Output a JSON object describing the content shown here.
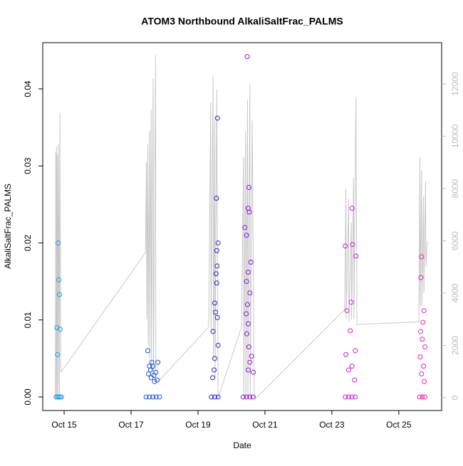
{
  "chart_data": {
    "type": "scatter",
    "title": "ATOM3 Northbound AlkaliSaltFrac_PALMS",
    "x_label": "Date",
    "y_label": "AlkaliSaltFrac_PALMS",
    "xlim": [
      14.36,
      26.28
    ],
    "xticks": [
      {
        "value": 15,
        "label": "Oct 15"
      },
      {
        "value": 17,
        "label": "Oct 17"
      },
      {
        "value": 19,
        "label": "Oct 19"
      },
      {
        "value": 21,
        "label": "Oct 21"
      },
      {
        "value": 23,
        "label": "Oct 23"
      },
      {
        "value": 25,
        "label": "Oct 25"
      }
    ],
    "ylim": [
      -0.00176,
      0.046
    ],
    "yticks": [
      {
        "value": 0,
        "label": "0.00"
      },
      0.01,
      0.02,
      0.03,
      0.04
    ],
    "y2lim": [
      -490,
      13580
    ],
    "y2ticks": [
      0,
      2000,
      4000,
      6000,
      8000,
      10000,
      12000
    ],
    "y2tick_color": "#bbbbbb",
    "series": [
      {
        "color": "#1f9fe8",
        "x": [
          14.78,
          14.8,
          14.82,
          14.84,
          14.86,
          14.88,
          14.76,
          14.8,
          14.84,
          14.88,
          14.92
        ],
        "values": [
          0.009,
          0.0055,
          0.02,
          0.0152,
          0.0133,
          0.0088,
          0,
          0,
          0,
          0,
          0
        ]
      },
      {
        "color": "#1a4fe0",
        "x": [
          17.5,
          17.52,
          17.55,
          17.58,
          17.6,
          17.62,
          17.65,
          17.68,
          17.7,
          17.74,
          17.78,
          17.8,
          17.45,
          17.55,
          17.65,
          17.75,
          17.85
        ],
        "values": [
          0.006,
          0.003,
          0.004,
          0.0035,
          0.0025,
          0.0045,
          0.004,
          0.0028,
          0.002,
          0.0032,
          0.0022,
          0.0045,
          0,
          0,
          0,
          0,
          0
        ]
      },
      {
        "color": "#2a1fd8",
        "x": [
          19.58,
          19.55,
          19.6,
          19.56,
          19.57,
          19.54,
          19.56,
          19.5,
          19.52,
          19.58,
          19.45,
          19.6,
          19.5,
          19.48,
          19.44,
          19.4,
          19.5,
          19.6
        ],
        "values": [
          0.0362,
          0.0258,
          0.02,
          0.019,
          0.017,
          0.016,
          0.0148,
          0.0122,
          0.011,
          0.0103,
          0.0085,
          0.0067,
          0.005,
          0.0035,
          0.0025,
          0,
          0,
          0
        ]
      },
      {
        "color": "#8a10e8",
        "x": [
          20.47,
          20.52,
          20.5,
          20.53,
          20.4,
          20.45,
          20.58,
          20.5,
          20.45,
          20.55,
          20.48,
          20.44,
          20.5,
          20.46,
          20.52,
          20.6,
          20.55,
          20.5,
          20.65,
          20.35,
          20.45,
          20.55,
          20.65
        ],
        "values": [
          0.0442,
          0.0272,
          0.0245,
          0.024,
          0.022,
          0.021,
          0.0175,
          0.0162,
          0.015,
          0.0135,
          0.012,
          0.0108,
          0.0095,
          0.0082,
          0.0065,
          0.0053,
          0.0045,
          0.0035,
          0.0032,
          0,
          0,
          0,
          0
        ]
      },
      {
        "color": "#c81ed8",
        "x": [
          23.4,
          23.6,
          23.62,
          23.72,
          23.58,
          23.45,
          23.55,
          23.7,
          23.42,
          23.6,
          23.5,
          23.68,
          23.4,
          23.5,
          23.6,
          23.7
        ],
        "values": [
          0.0196,
          0.0245,
          0.0198,
          0.0183,
          0.0123,
          0.0112,
          0.0086,
          0.006,
          0.0055,
          0.004,
          0.0035,
          0.0022,
          0,
          0,
          0,
          0
        ]
      },
      {
        "color": "#e820b0",
        "x": [
          25.68,
          25.66,
          25.75,
          25.72,
          25.65,
          25.7,
          25.78,
          25.64,
          25.74,
          25.68,
          25.76,
          25.62,
          25.7,
          25.78
        ],
        "values": [
          0.0182,
          0.0155,
          0.0112,
          0.0097,
          0.0085,
          0.0075,
          0.0065,
          0.0052,
          0.004,
          0.003,
          0.002,
          0,
          0,
          0
        ]
      },
      {
        "axis": "y2",
        "color": "#c8c8c8",
        "x": [
          14.74,
          14.75,
          14.76,
          14.77,
          14.79,
          14.8,
          14.82,
          14.83,
          14.86,
          14.87,
          14.9,
          14.92,
          17.43,
          17.46,
          17.47,
          17.5,
          17.51,
          17.55,
          17.56,
          17.6,
          17.61,
          17.66,
          17.67,
          17.73,
          17.74,
          17.8,
          19.32,
          19.38,
          19.39,
          19.45,
          19.46,
          19.5,
          19.51,
          19.56,
          19.6,
          20.3,
          20.36,
          20.37,
          20.42,
          20.43,
          20.48,
          20.49,
          20.55,
          20.56,
          20.62,
          20.68,
          20.75,
          23.38,
          23.42,
          23.43,
          23.5,
          23.51,
          23.58,
          23.59,
          23.65,
          23.66,
          23.72,
          23.75,
          25.6,
          25.63,
          25.64,
          25.68,
          25.69,
          25.74,
          25.75,
          25.8,
          25.81,
          25.85
        ],
        "values": [
          0,
          9400,
          0,
          9600,
          0,
          9300,
          0,
          9700,
          0,
          10900,
          1000,
          1000,
          5550,
          9000,
          3000,
          9700,
          2000,
          10200,
          1500,
          11000,
          1000,
          12200,
          800,
          13100,
          600,
          600,
          2700,
          11300,
          2500,
          12300,
          1500,
          10600,
          800,
          11800,
          0,
          2700,
          9200,
          0,
          10200,
          0,
          11400,
          0,
          12000,
          0,
          10600,
          0,
          0,
          3370,
          8000,
          3000,
          7600,
          2900,
          6700,
          3000,
          8400,
          3000,
          11500,
          2800,
          2900,
          9200,
          3500,
          8700,
          3500,
          7700,
          4000,
          8300,
          5000,
          6000
        ]
      }
    ]
  }
}
